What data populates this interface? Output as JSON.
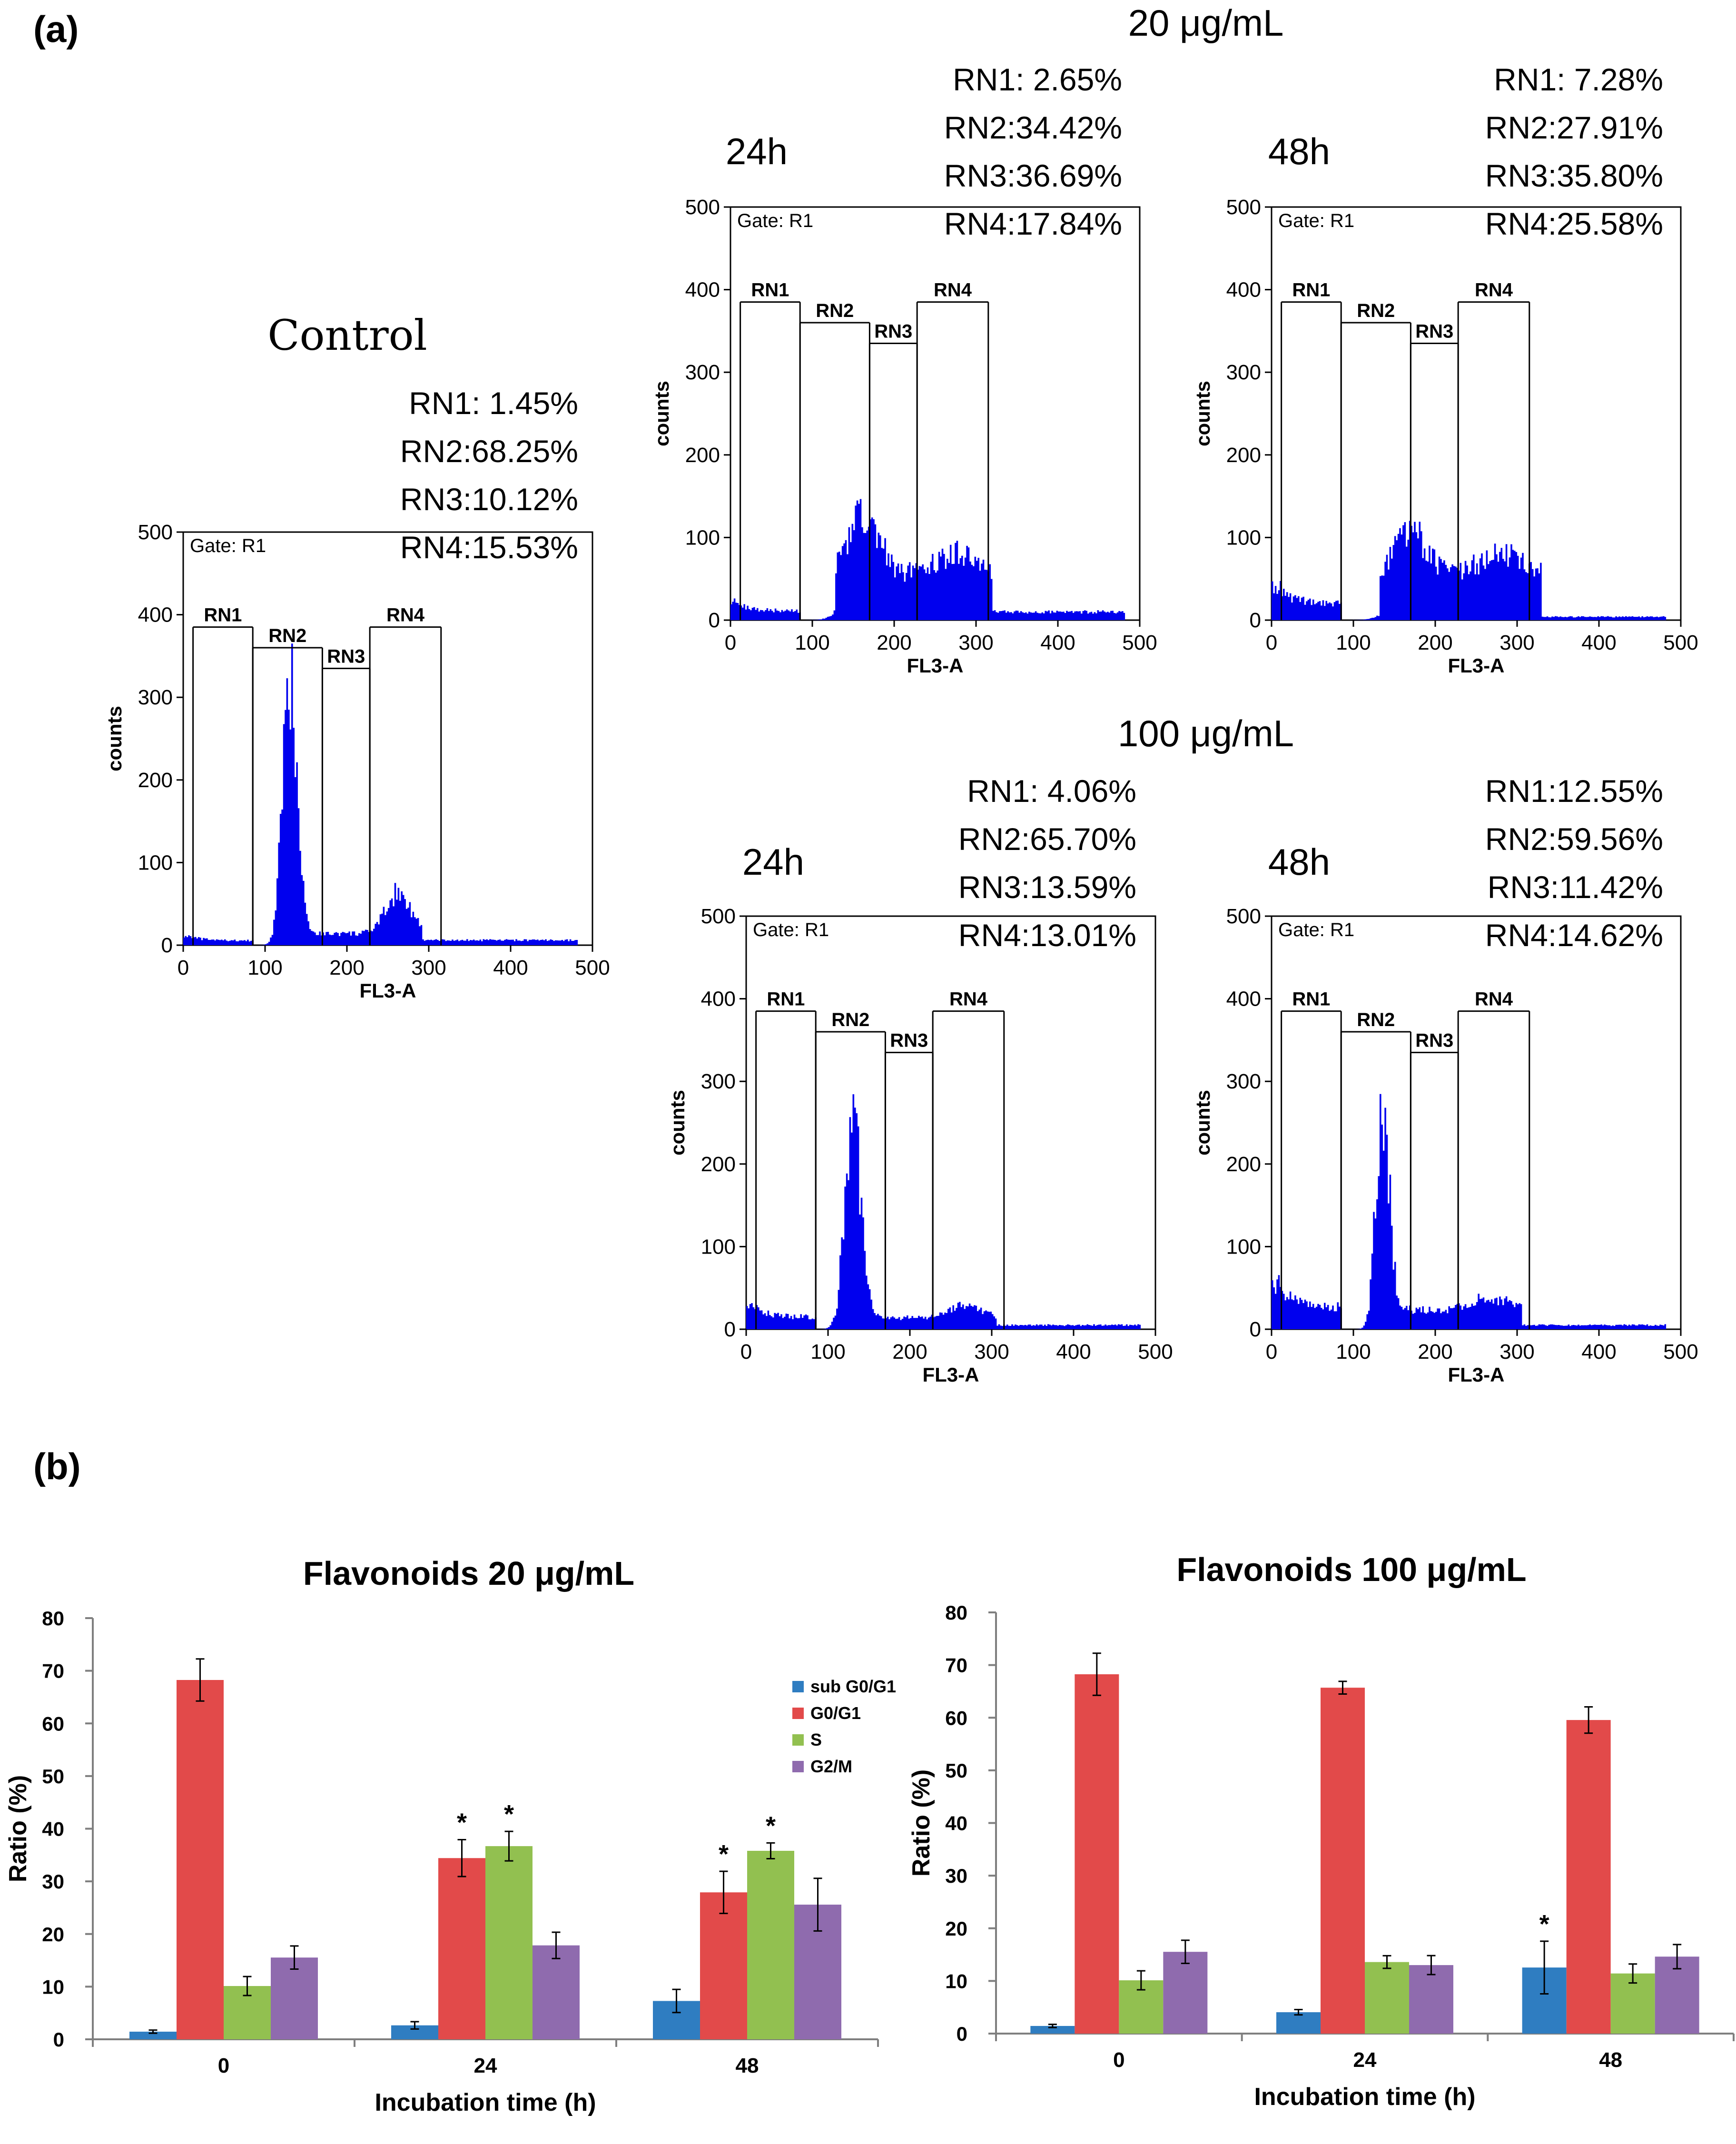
{
  "panel_labels": {
    "a": "(a)",
    "b": "(b)"
  },
  "section_titles": {
    "dose20": "20 μg/mL",
    "dose100": "100 μg/mL"
  },
  "histograms": [
    {
      "id": "control",
      "title": "Control",
      "title_font": "serif",
      "stats": [
        "RN1:  1.45%",
        "RN2:68.25%",
        "RN3:10.12%",
        "RN4:15.53%"
      ],
      "gate": "Gate: R1",
      "ylabel": "counts",
      "xlabel": "FL3-A",
      "xticks": [
        "0",
        "100",
        "200",
        "300",
        "400",
        "500"
      ],
      "yticks": [
        "0",
        "100",
        "200",
        "300",
        "400",
        "500"
      ],
      "regions": [
        "RN1",
        "RN2",
        "RN3",
        "RN4"
      ],
      "profile": {
        "g1_peak": 305,
        "g1_pos": 130,
        "g1_width": 9,
        "g2_peak": 50,
        "g2_pos": 262,
        "g2_width": 15,
        "s_level": 14,
        "debris_level": 6,
        "tail_level": 6
      }
    },
    {
      "id": "d20_24h",
      "title": "24h",
      "title_font": "sans",
      "stats": [
        "RN1:  2.65%",
        "RN2:34.42%",
        "RN3:36.69%",
        "RN4:17.84%"
      ],
      "gate": "Gate: R1",
      "ylabel": "counts",
      "xlabel": "FL3-A",
      "xticks": [
        "0",
        "100",
        "200",
        "300",
        "400",
        "500"
      ],
      "yticks": [
        "0",
        "100",
        "200",
        "300",
        "400",
        "500"
      ],
      "regions": [
        "RN1",
        "RN2",
        "RN3",
        "RN4"
      ],
      "profile": {
        "g1_peak": 75,
        "g1_pos": 162,
        "g1_width": 18,
        "g2_peak": 25,
        "g2_pos": 270,
        "g2_width": 25,
        "s_level": 55,
        "debris_level": 12,
        "tail_level": 10
      }
    },
    {
      "id": "d20_48h",
      "title": "48h",
      "title_font": "sans",
      "stats": [
        "RN1:  7.28%",
        "RN2:27.91%",
        "RN3:35.80%",
        "RN4:25.58%"
      ],
      "gate": "Gate: R1",
      "ylabel": "counts",
      "xlabel": "FL3-A",
      "xticks": [
        "0",
        "100",
        "200",
        "300",
        "400",
        "500"
      ],
      "yticks": [
        "0",
        "100",
        "200",
        "300",
        "400",
        "500"
      ],
      "regions": [
        "RN1",
        "RN2",
        "RN3",
        "RN4"
      ],
      "profile": {
        "g1_peak": 45,
        "g1_pos": 170,
        "g1_width": 20,
        "g2_peak": 20,
        "g2_pos": 280,
        "g2_width": 25,
        "s_level": 58,
        "debris_level": 22,
        "tail_level": 4
      }
    },
    {
      "id": "d100_24h",
      "title": "24h",
      "title_font": "sans",
      "stats": [
        "RN1:  4.06%",
        "RN2:65.70%",
        "RN3:13.59%",
        "RN4:13.01%"
      ],
      "gate": "Gate: R1",
      "ylabel": "counts",
      "xlabel": "FL3-A",
      "xticks": [
        "0",
        "100",
        "200",
        "300",
        "400",
        "500"
      ],
      "yticks": [
        "0",
        "100",
        "200",
        "300",
        "400",
        "500"
      ],
      "regions": [
        "RN1",
        "RN2",
        "RN3",
        "RN4"
      ],
      "profile": {
        "g1_peak": 225,
        "g1_pos": 130,
        "g1_width": 10,
        "g2_peak": 15,
        "g2_pos": 265,
        "g2_width": 20,
        "s_level": 14,
        "debris_level": 16,
        "tail_level": 5
      }
    },
    {
      "id": "d100_48h",
      "title": "48h",
      "title_font": "sans",
      "stats": [
        "RN1:12.55%",
        "RN2:59.56%",
        "RN3:11.42%",
        "RN4:14.62%"
      ],
      "gate": "Gate: R1",
      "ylabel": "counts",
      "xlabel": "FL3-A",
      "xticks": [
        "0",
        "100",
        "200",
        "300",
        "400",
        "500"
      ],
      "yticks": [
        "0",
        "100",
        "200",
        "300",
        "400",
        "500"
      ],
      "regions": [
        "RN1",
        "RN2",
        "RN3",
        "RN4"
      ],
      "profile": {
        "g1_peak": 250,
        "g1_pos": 135,
        "g1_width": 8,
        "g2_peak": 15,
        "g2_pos": 265,
        "g2_width": 20,
        "s_level": 24,
        "debris_level": 30,
        "tail_level": 5
      }
    }
  ],
  "chart_data": [
    {
      "type": "bar",
      "title": "Flavonoids 20 μg/mL",
      "xlabel": "Incubation time (h)",
      "ylabel": "Ratio (%)",
      "categories": [
        "0",
        "24",
        "48"
      ],
      "ylim": [
        0,
        80
      ],
      "yticks": [
        "0",
        "10",
        "20",
        "30",
        "40",
        "50",
        "60",
        "70",
        "80"
      ],
      "series": [
        {
          "name": "sub G0/G1",
          "color": "#2f7dc1",
          "values": [
            1.45,
            2.65,
            7.28
          ],
          "errors": [
            0.3,
            0.7,
            2.2
          ]
        },
        {
          "name": "G0/G1",
          "color": "#e24a4a",
          "values": [
            68.25,
            34.42,
            27.91
          ],
          "errors": [
            4.0,
            3.5,
            4.0
          ]
        },
        {
          "name": "S",
          "color": "#92c050",
          "values": [
            10.12,
            36.69,
            35.8
          ],
          "errors": [
            1.8,
            2.8,
            1.5
          ]
        },
        {
          "name": "G2/M",
          "color": "#8f6bae",
          "values": [
            15.53,
            17.84,
            25.58
          ],
          "errors": [
            2.2,
            2.5,
            5.0
          ]
        }
      ],
      "significance": [
        {
          "category": "24",
          "series": "G0/G1",
          "label": "*"
        },
        {
          "category": "24",
          "series": "S",
          "label": "*"
        },
        {
          "category": "48",
          "series": "G0/G1",
          "label": "*"
        },
        {
          "category": "48",
          "series": "S",
          "label": "*"
        }
      ],
      "legend": {
        "position": "right",
        "entries": [
          "sub G0/G1",
          "G0/G1",
          "S",
          "G2/M"
        ]
      }
    },
    {
      "type": "bar",
      "title": "Flavonoids 100 μg/mL",
      "xlabel": "Incubation time (h)",
      "ylabel": "Ratio (%)",
      "categories": [
        "0",
        "24",
        "48"
      ],
      "ylim": [
        0,
        80
      ],
      "yticks": [
        "0",
        "10",
        "20",
        "30",
        "40",
        "50",
        "60",
        "70",
        "80"
      ],
      "series": [
        {
          "name": "sub G0/G1",
          "color": "#2f7dc1",
          "values": [
            1.45,
            4.06,
            12.55
          ],
          "errors": [
            0.3,
            0.5,
            5.0
          ]
        },
        {
          "name": "G0/G1",
          "color": "#e24a4a",
          "values": [
            68.25,
            65.7,
            59.56
          ],
          "errors": [
            4.0,
            1.2,
            2.5
          ]
        },
        {
          "name": "S",
          "color": "#92c050",
          "values": [
            10.12,
            13.59,
            11.42
          ],
          "errors": [
            1.8,
            1.2,
            1.8
          ]
        },
        {
          "name": "G2/M",
          "color": "#8f6bae",
          "values": [
            15.53,
            13.01,
            14.62
          ],
          "errors": [
            2.2,
            1.8,
            2.3
          ]
        }
      ],
      "significance": [
        {
          "category": "48",
          "series": "sub G0/G1",
          "label": "*"
        }
      ]
    }
  ]
}
